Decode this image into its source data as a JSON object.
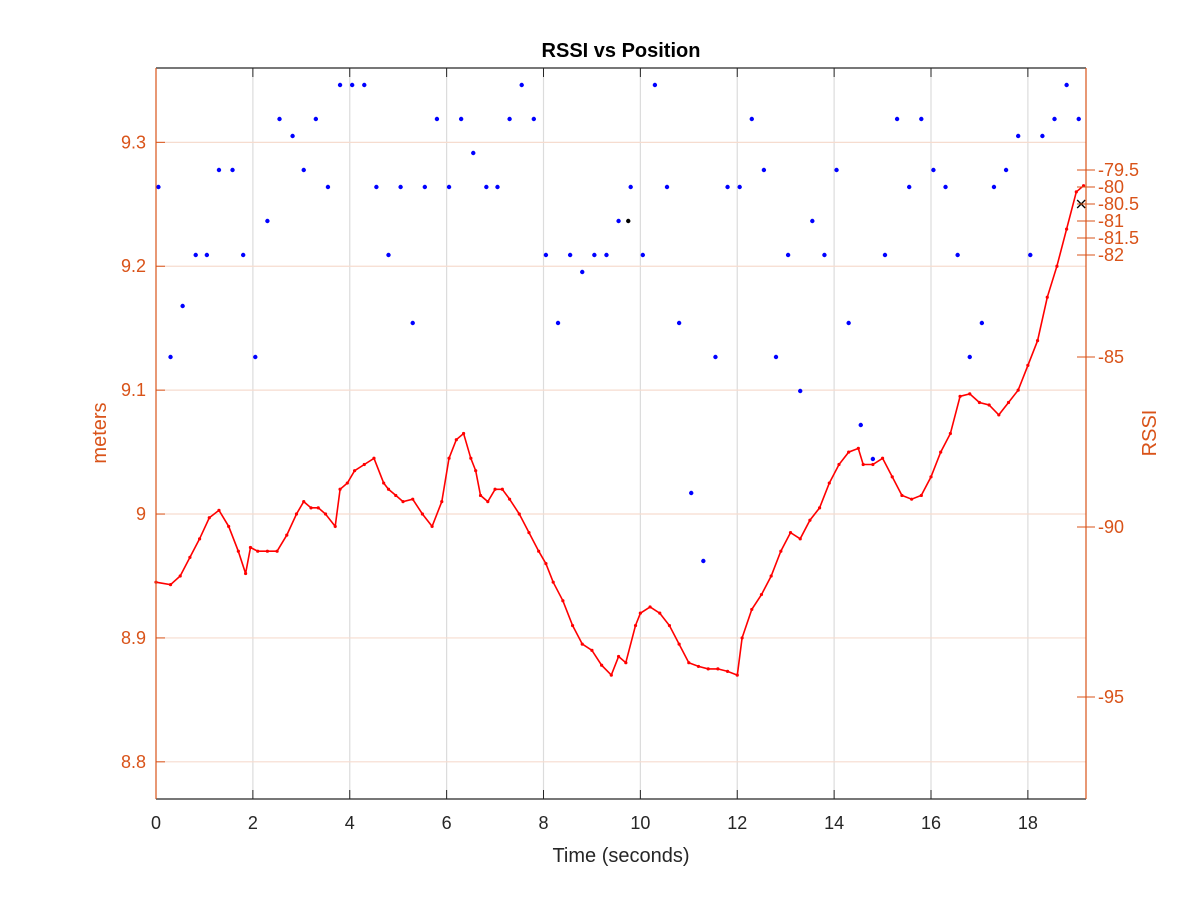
{
  "chart_data": {
    "type": "line",
    "title": "RSSI vs Position",
    "xlabel": "Time (seconds)",
    "ylabel_left": "meters",
    "ylabel_right": "RSSI",
    "xlim": [
      0,
      19.2
    ],
    "ylim_left": [
      8.77,
      9.36
    ],
    "ylim_right": [
      -98,
      -76.5
    ],
    "xticks": [
      "0",
      "2",
      "4",
      "6",
      "8",
      "10",
      "12",
      "14",
      "16",
      "18"
    ],
    "yticks_left": [
      "8.8",
      "8.9",
      "9",
      "9.1",
      "9.2",
      "9.3"
    ],
    "yticks_right": [
      "-79.5",
      "-80",
      "-80.5",
      "-81",
      "-81.5",
      "-82",
      "-85",
      "-90",
      "-95"
    ],
    "grid": "on",
    "colors": {
      "rssi_points": "#0000FF",
      "meters_line": "#FF0000",
      "axis_right": "#D95319",
      "axis_left": "#D95319",
      "grid": "#E0E0E0"
    },
    "series": [
      {
        "axis": "right",
        "marker": "dot",
        "x": [
          0.05,
          0.3,
          0.55,
          0.82,
          1.05,
          1.3,
          1.58,
          1.8,
          2.05,
          2.3,
          2.55,
          2.82,
          3.05,
          3.3,
          3.55,
          3.8,
          4.05,
          4.3,
          4.55,
          4.8,
          5.05,
          5.3,
          5.55,
          5.8,
          6.05,
          6.3,
          6.55,
          6.82,
          7.05,
          7.3,
          7.55,
          7.8,
          8.05,
          8.3,
          8.55,
          8.8,
          9.05,
          9.3,
          9.55,
          9.8,
          10.05,
          10.3,
          10.55,
          10.8,
          11.05,
          11.3,
          11.55,
          11.8,
          12.05,
          12.3,
          12.55,
          12.8,
          13.05,
          13.3,
          13.55,
          13.8,
          14.05,
          14.3,
          14.55,
          14.8,
          15.05,
          15.3,
          15.55,
          15.8,
          16.05,
          16.3,
          16.55,
          16.8,
          17.05,
          17.3,
          17.55,
          17.8,
          18.05,
          18.3,
          18.55,
          18.8,
          19.05
        ],
        "y": [
          -80,
          -85,
          -83.5,
          -82,
          -82,
          -79.5,
          -79.5,
          -82,
          -85,
          -81,
          -78,
          -78.5,
          -79.5,
          -78,
          -80,
          -77,
          -77,
          -77,
          -80,
          -82,
          -80,
          -84,
          -80,
          -78,
          -80,
          -78,
          -79,
          -80,
          -80,
          -78,
          -77,
          -78,
          -82,
          -84,
          -82,
          -82.5,
          -82,
          -82,
          -81,
          -80,
          -82,
          -77,
          -80,
          -84,
          -89,
          -91,
          -85,
          -80,
          -80,
          -78,
          -79.5,
          -85,
          -82,
          -86,
          -81,
          -82,
          -79.5,
          -84,
          -87,
          -88,
          -82,
          -78,
          -80,
          -78,
          -79.5,
          -80,
          -82,
          -85,
          -84,
          -80,
          -79.5,
          -78.5,
          -82,
          -78.5,
          -78,
          -77,
          -78
        ]
      },
      {
        "axis": "left",
        "marker": "line",
        "x": [
          0.0,
          0.3,
          0.5,
          0.7,
          0.9,
          1.1,
          1.3,
          1.5,
          1.7,
          1.85,
          1.95,
          2.1,
          2.3,
          2.5,
          2.7,
          2.9,
          3.05,
          3.2,
          3.35,
          3.5,
          3.7,
          3.8,
          3.95,
          4.1,
          4.3,
          4.5,
          4.7,
          4.8,
          4.95,
          5.1,
          5.3,
          5.5,
          5.7,
          5.9,
          6.05,
          6.2,
          6.35,
          6.5,
          6.6,
          6.7,
          6.85,
          7.0,
          7.15,
          7.3,
          7.5,
          7.7,
          7.9,
          8.05,
          8.2,
          8.4,
          8.6,
          8.8,
          9.0,
          9.2,
          9.4,
          9.55,
          9.7,
          9.9,
          10.0,
          10.2,
          10.4,
          10.6,
          10.8,
          11.0,
          11.2,
          11.4,
          11.6,
          11.8,
          12.0,
          12.1,
          12.3,
          12.5,
          12.7,
          12.9,
          13.1,
          13.3,
          13.5,
          13.7,
          13.9,
          14.1,
          14.3,
          14.5,
          14.6,
          14.8,
          15.0,
          15.2,
          15.4,
          15.6,
          15.8,
          16.0,
          16.2,
          16.4,
          16.6,
          16.8,
          17.0,
          17.2,
          17.4,
          17.6,
          17.8,
          18.0,
          18.2,
          18.4,
          18.6,
          18.8,
          19.0,
          19.15
        ],
        "y": [
          8.945,
          8.943,
          8.95,
          8.965,
          8.98,
          8.997,
          9.003,
          8.99,
          8.97,
          8.952,
          8.973,
          8.97,
          8.97,
          8.97,
          8.983,
          9.0,
          9.01,
          9.005,
          9.005,
          9.0,
          8.99,
          9.02,
          9.025,
          9.035,
          9.04,
          9.045,
          9.025,
          9.02,
          9.015,
          9.01,
          9.012,
          9.0,
          8.99,
          9.01,
          9.045,
          9.06,
          9.065,
          9.045,
          9.035,
          9.015,
          9.01,
          9.02,
          9.02,
          9.012,
          9.0,
          8.985,
          8.97,
          8.96,
          8.945,
          8.93,
          8.91,
          8.895,
          8.89,
          8.878,
          8.87,
          8.885,
          8.88,
          8.91,
          8.92,
          8.925,
          8.92,
          8.91,
          8.895,
          8.88,
          8.877,
          8.875,
          8.875,
          8.873,
          8.87,
          8.9,
          8.923,
          8.935,
          8.95,
          8.97,
          8.985,
          8.98,
          8.995,
          9.005,
          9.025,
          9.04,
          9.05,
          9.053,
          9.04,
          9.04,
          9.045,
          9.03,
          9.015,
          9.012,
          9.015,
          9.03,
          9.05,
          9.065,
          9.095,
          9.097,
          9.09,
          9.088,
          9.08,
          9.09,
          9.1,
          9.12,
          9.14,
          9.175,
          9.2,
          9.23,
          9.26,
          9.265
        ]
      }
    ],
    "annotations": [
      {
        "type": "marker",
        "symbol": "x",
        "x": 19.1,
        "y_right": -80.5,
        "color": "#000000"
      },
      {
        "type": "marker",
        "symbol": "dot",
        "x": 9.75,
        "y_right": -81,
        "color": "#000000"
      }
    ]
  }
}
